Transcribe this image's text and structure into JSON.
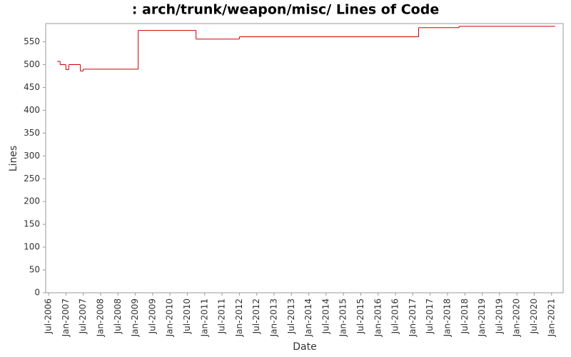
{
  "chart_data": {
    "type": "step",
    "title": ": arch/trunk/weapon/misc/ Lines of Code",
    "x_label": "Date",
    "y_label": "Lines",
    "x": [
      "2006-10",
      "2006-11",
      "2007-01",
      "2007-02",
      "2007-06",
      "2007-07",
      "2009-02",
      "2010-10",
      "2012-01",
      "2017-03",
      "2018-05",
      "2021-02"
    ],
    "values": [
      507,
      500,
      489,
      500,
      486,
      490,
      575,
      556,
      561,
      581,
      584,
      584
    ],
    "color": "#cc0000",
    "xlim": [
      "2006-06",
      "2021-05"
    ],
    "xticks": [
      {
        "value": "2006-07",
        "label": "Jul-2006"
      },
      {
        "value": "2007-01",
        "label": "Jan-2007"
      },
      {
        "value": "2007-07",
        "label": "Jul-2007"
      },
      {
        "value": "2008-01",
        "label": "Jan-2008"
      },
      {
        "value": "2008-07",
        "label": "Jul-2008"
      },
      {
        "value": "2009-01",
        "label": "Jan-2009"
      },
      {
        "value": "2009-07",
        "label": "Jul-2009"
      },
      {
        "value": "2010-01",
        "label": "Jan-2010"
      },
      {
        "value": "2010-07",
        "label": "Jul-2010"
      },
      {
        "value": "2011-01",
        "label": "Jan-2011"
      },
      {
        "value": "2011-07",
        "label": "Jul-2011"
      },
      {
        "value": "2012-01",
        "label": "Jan-2012"
      },
      {
        "value": "2012-07",
        "label": "Jul-2012"
      },
      {
        "value": "2013-01",
        "label": "Jan-2013"
      },
      {
        "value": "2013-07",
        "label": "Jul-2013"
      },
      {
        "value": "2014-01",
        "label": "Jan-2014"
      },
      {
        "value": "2014-07",
        "label": "Jul-2014"
      },
      {
        "value": "2015-01",
        "label": "Jan-2015"
      },
      {
        "value": "2015-07",
        "label": "Jul-2015"
      },
      {
        "value": "2016-01",
        "label": "Jan-2016"
      },
      {
        "value": "2016-07",
        "label": "Jul-2016"
      },
      {
        "value": "2017-01",
        "label": "Jan-2017"
      },
      {
        "value": "2017-07",
        "label": "Jul-2017"
      },
      {
        "value": "2018-01",
        "label": "Jan-2018"
      },
      {
        "value": "2018-07",
        "label": "Jul-2018"
      },
      {
        "value": "2019-01",
        "label": "Jan-2019"
      },
      {
        "value": "2019-07",
        "label": "Jul-2019"
      },
      {
        "value": "2020-01",
        "label": "Jan-2020"
      },
      {
        "value": "2020-07",
        "label": "Jul-2020"
      },
      {
        "value": "2021-01",
        "label": "Jan-2021"
      }
    ],
    "ylim": [
      0,
      590
    ],
    "yticks": [
      0,
      50,
      100,
      150,
      200,
      250,
      300,
      350,
      400,
      450,
      500,
      550
    ],
    "grid": false
  }
}
